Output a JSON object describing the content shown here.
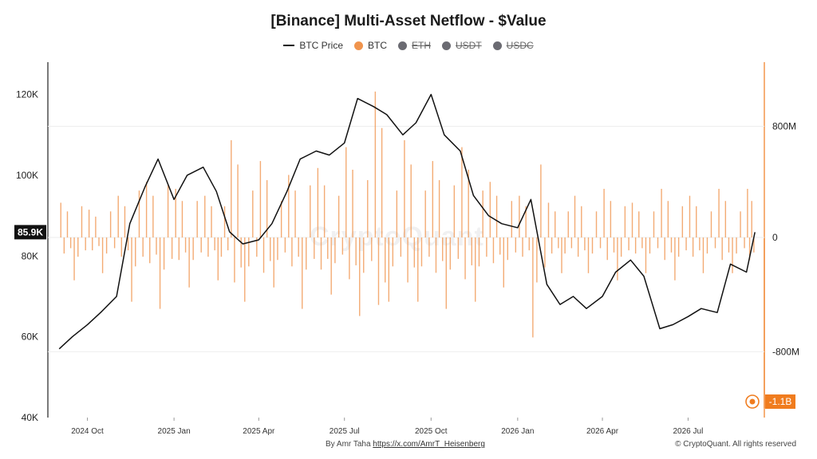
{
  "title": "[Binance] Multi-Asset Netflow - $Value",
  "legend": [
    {
      "label": "BTC Price",
      "kind": "line",
      "color": "#111111",
      "active": true
    },
    {
      "label": "BTC",
      "kind": "dot",
      "color": "#f0944d",
      "active": true
    },
    {
      "label": "ETH",
      "kind": "dot",
      "color": "#6b6b72",
      "active": false
    },
    {
      "label": "USDT",
      "kind": "dot",
      "color": "#6b6b72",
      "active": false
    },
    {
      "label": "USDC",
      "kind": "dot",
      "color": "#6b6b72",
      "active": false
    }
  ],
  "watermark": "CryptoQuant",
  "footer": {
    "byline_prefix": "By Amr Taha ",
    "byline_link": "https://x.com/AmrT_Heisenberg",
    "copyright": "© CryptoQuant. All rights reserved"
  },
  "chart_data": {
    "type": "line",
    "x_tick_labels": [
      "2024 Oct",
      "2025 Jan",
      "2025 Apr",
      "2025 Jul",
      "2025 Oct",
      "2026 Jan",
      "2026 Apr",
      "2026 Jul"
    ],
    "y_left": {
      "ticks": [
        "40K",
        "60K",
        "80K",
        "100K",
        "120K"
      ],
      "min": 40000,
      "max": 128000,
      "current_price_label": "85.9K"
    },
    "y_right": {
      "ticks": [
        "-800M",
        "0",
        "800M"
      ],
      "min": -1250000000,
      "max": 1250000000,
      "current_netflow_label": "-1.1B"
    },
    "colors": {
      "price": "#111111",
      "netflow": "#f0944d",
      "accent": "#f07c1e"
    },
    "series": [
      {
        "name": "BTC Price",
        "axis": "left",
        "x": [
          "2024-09-01",
          "2024-09-15",
          "2024-10-01",
          "2024-10-15",
          "2024-11-01",
          "2024-11-15",
          "2024-12-01",
          "2024-12-15",
          "2025-01-01",
          "2025-01-15",
          "2025-02-01",
          "2025-02-15",
          "2025-03-01",
          "2025-03-15",
          "2025-04-01",
          "2025-04-15",
          "2025-05-01",
          "2025-05-15",
          "2025-06-01",
          "2025-06-15",
          "2025-07-01",
          "2025-07-15",
          "2025-08-01",
          "2025-08-15",
          "2025-09-01",
          "2025-09-15",
          "2025-10-01",
          "2025-10-15",
          "2025-11-01",
          "2025-11-15",
          "2025-12-01",
          "2025-12-15",
          "2026-01-01",
          "2026-01-15",
          "2026-02-01",
          "2026-02-15",
          "2026-03-01",
          "2026-03-15",
          "2026-04-01",
          "2026-04-15",
          "2026-05-01",
          "2026-05-15",
          "2026-06-01",
          "2026-06-15",
          "2026-07-01",
          "2026-07-15",
          "2026-08-01",
          "2026-08-15",
          "2026-09-01",
          "2026-09-10"
        ],
        "values": [
          57000,
          60000,
          63000,
          66000,
          70000,
          88000,
          97000,
          104000,
          94000,
          100000,
          102000,
          96000,
          86000,
          83000,
          84000,
          88000,
          96000,
          104000,
          106000,
          105000,
          108000,
          119000,
          117000,
          115000,
          110000,
          113000,
          120000,
          110000,
          106000,
          95000,
          90000,
          88000,
          87000,
          94000,
          73000,
          68000,
          70000,
          67000,
          70000,
          76000,
          79000,
          75000,
          62000,
          63000,
          65000,
          67000,
          66000,
          78000,
          76000,
          85900
        ]
      },
      {
        "name": "BTC",
        "axis": "right",
        "type": "bar",
        "x": [
          "2024-09-01",
          "2024-09-15",
          "2024-10-01",
          "2024-10-15",
          "2024-11-01",
          "2024-11-15",
          "2024-12-01",
          "2024-12-15",
          "2025-01-01",
          "2025-01-15",
          "2025-02-01",
          "2025-02-15",
          "2025-03-01",
          "2025-03-15",
          "2025-04-01",
          "2025-04-15",
          "2025-05-01",
          "2025-05-15",
          "2025-06-01",
          "2025-06-15",
          "2025-07-01",
          "2025-07-15",
          "2025-08-01",
          "2025-08-15",
          "2025-09-01",
          "2025-09-15",
          "2025-10-01",
          "2025-10-15",
          "2025-11-01",
          "2025-11-15",
          "2025-12-01",
          "2025-12-15",
          "2026-01-01",
          "2026-01-15",
          "2026-02-01",
          "2026-02-15",
          "2026-03-01",
          "2026-03-15",
          "2026-04-01",
          "2026-04-15",
          "2026-05-01",
          "2026-05-15",
          "2026-06-01",
          "2026-06-15",
          "2026-07-01",
          "2026-07-15",
          "2026-08-01",
          "2026-08-15",
          "2026-09-01",
          "2026-09-10"
        ],
        "values": [
          250000000,
          -300000000,
          200000000,
          -250000000,
          300000000,
          -450000000,
          400000000,
          -500000000,
          350000000,
          -350000000,
          300000000,
          -300000000,
          700000000,
          -450000000,
          550000000,
          -350000000,
          450000000,
          -500000000,
          500000000,
          -400000000,
          650000000,
          -550000000,
          1050000000,
          -450000000,
          700000000,
          -450000000,
          550000000,
          -500000000,
          650000000,
          -450000000,
          400000000,
          -350000000,
          300000000,
          -700000000,
          250000000,
          -250000000,
          300000000,
          -250000000,
          350000000,
          -300000000,
          250000000,
          -250000000,
          350000000,
          -300000000,
          300000000,
          -250000000,
          350000000,
          -250000000,
          350000000,
          -1100000000
        ]
      }
    ]
  }
}
